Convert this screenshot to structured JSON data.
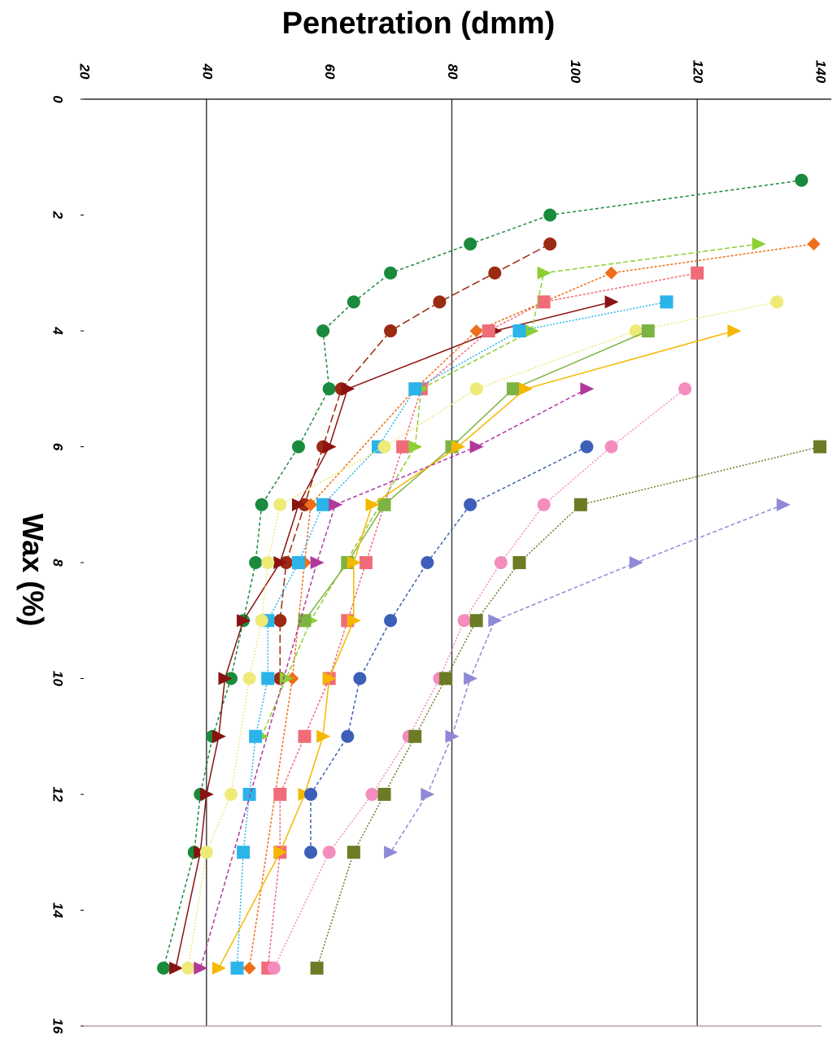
{
  "chart_data": {
    "type": "scatter",
    "title": "",
    "xlabel": "Penetration (dmm)",
    "ylabel": "Wax (%)",
    "xlim": [
      20,
      140
    ],
    "ylim": [
      0,
      16
    ],
    "x_ticks": [
      "20",
      "40",
      "60",
      "80",
      "100",
      "120",
      "140"
    ],
    "y_ticks": [
      "0",
      "2",
      "4",
      "6",
      "8",
      "10",
      "12",
      "14",
      "16"
    ],
    "grid": "vertical lines at 40, 80, 120",
    "y_axis_inverted": true,
    "series": [
      {
        "color": "#1a8a3c",
        "marker": "circle",
        "dash": "4,3",
        "points": [
          [
            137,
            1.4
          ],
          [
            96,
            2
          ],
          [
            83,
            2.5
          ],
          [
            70,
            3
          ],
          [
            64,
            3.5
          ],
          [
            59,
            4
          ],
          [
            60,
            5
          ],
          [
            55,
            6
          ],
          [
            49,
            7
          ],
          [
            48,
            8
          ],
          [
            46,
            9
          ],
          [
            44,
            10
          ],
          [
            41,
            11
          ],
          [
            39,
            12
          ],
          [
            38,
            13
          ],
          [
            33,
            15
          ]
        ]
      },
      {
        "color": "#9b2a12",
        "marker": "circle",
        "dash": "10,4",
        "points": [
          [
            96,
            2.5
          ],
          [
            87,
            3
          ],
          [
            78,
            3.5
          ],
          [
            70,
            4
          ],
          [
            62,
            5
          ],
          [
            59,
            6
          ],
          [
            56,
            7
          ],
          [
            53,
            8
          ],
          [
            52,
            9
          ],
          [
            52,
            10
          ]
        ]
      },
      {
        "color": "#8b1212",
        "marker": "triangle",
        "dash": "",
        "points": [
          [
            106,
            3.5
          ],
          [
            87,
            4
          ],
          [
            63,
            5
          ],
          [
            60,
            6
          ],
          [
            55,
            7
          ],
          [
            52,
            8
          ],
          [
            46,
            9
          ],
          [
            43,
            10
          ],
          [
            42,
            11
          ],
          [
            40,
            12
          ],
          [
            39,
            13
          ],
          [
            35,
            15
          ]
        ]
      },
      {
        "color": "#ef6f1a",
        "marker": "diamond",
        "dash": "3,2",
        "points": [
          [
            139,
            2.5
          ],
          [
            106,
            3
          ],
          [
            84,
            4
          ],
          [
            74,
            5
          ],
          [
            57,
            7
          ],
          [
            56,
            8
          ],
          [
            54,
            10
          ],
          [
            47,
            15
          ]
        ]
      },
      {
        "color": "#f06c78",
        "marker": "square",
        "dash": "3,2",
        "points": [
          [
            120,
            3
          ],
          [
            95,
            3.5
          ],
          [
            86,
            4
          ],
          [
            75,
            5
          ],
          [
            72,
            6
          ],
          [
            66,
            8
          ],
          [
            63,
            9
          ],
          [
            60,
            10
          ],
          [
            56,
            11
          ],
          [
            52,
            12
          ],
          [
            52,
            13
          ],
          [
            50,
            15
          ]
        ]
      },
      {
        "color": "#8ccf32",
        "marker": "triangle",
        "dash": "6,3",
        "points": [
          [
            130,
            2.5
          ],
          [
            95,
            3
          ],
          [
            93,
            4
          ],
          [
            75,
            5
          ],
          [
            74,
            6
          ],
          [
            57,
            9
          ],
          [
            53,
            10
          ],
          [
            49,
            11
          ]
        ]
      },
      {
        "color": "#2ab4ea",
        "marker": "square",
        "dash": "2,2",
        "points": [
          [
            115,
            3.5
          ],
          [
            91,
            4
          ],
          [
            74,
            5
          ],
          [
            68,
            6
          ],
          [
            59,
            7
          ],
          [
            55,
            8
          ],
          [
            50,
            9
          ],
          [
            50,
            10
          ],
          [
            48,
            11
          ],
          [
            47,
            12
          ],
          [
            46,
            13
          ],
          [
            45,
            15
          ]
        ]
      },
      {
        "color": "#eeea78",
        "marker": "circle",
        "dash": "2,2",
        "points": [
          [
            133,
            3.5
          ],
          [
            110,
            4
          ],
          [
            84,
            5
          ],
          [
            69,
            6
          ],
          [
            52,
            7
          ],
          [
            50,
            8
          ],
          [
            49,
            9
          ],
          [
            47,
            10
          ],
          [
            44,
            12
          ],
          [
            40,
            13
          ],
          [
            37,
            15
          ]
        ]
      },
      {
        "color": "#7cb342",
        "marker": "square",
        "dash": "",
        "points": [
          [
            112,
            4
          ],
          [
            90,
            5
          ],
          [
            80,
            6
          ],
          [
            69,
            7
          ],
          [
            63,
            8
          ],
          [
            56,
            9
          ]
        ]
      },
      {
        "color": "#f5b800",
        "marker": "triangle",
        "dash": "",
        "points": [
          [
            126,
            4
          ],
          [
            92,
            5
          ],
          [
            81,
            6
          ],
          [
            67,
            7
          ],
          [
            64,
            8
          ],
          [
            64,
            9
          ],
          [
            60,
            10
          ],
          [
            59,
            11
          ],
          [
            56,
            12
          ],
          [
            52,
            13
          ],
          [
            42,
            15
          ]
        ]
      },
      {
        "color": "#b2389b",
        "marker": "triangle",
        "dash": "5,3",
        "points": [
          [
            102,
            5
          ],
          [
            84,
            6
          ],
          [
            61,
            7
          ],
          [
            58,
            8
          ],
          [
            39,
            15
          ]
        ]
      },
      {
        "color": "#f48dbd",
        "marker": "circle",
        "dash": "2,2",
        "points": [
          [
            118,
            5
          ],
          [
            106,
            6
          ],
          [
            95,
            7
          ],
          [
            88,
            8
          ],
          [
            82,
            9
          ],
          [
            78,
            10
          ],
          [
            73,
            11
          ],
          [
            67,
            12
          ],
          [
            60,
            13
          ],
          [
            51,
            15
          ]
        ]
      },
      {
        "color": "#3d5fb9",
        "marker": "circle",
        "dash": "4,3",
        "points": [
          [
            102,
            6
          ],
          [
            83,
            7
          ],
          [
            76,
            8
          ],
          [
            70,
            9
          ],
          [
            65,
            10
          ],
          [
            63,
            11
          ],
          [
            57,
            12
          ],
          [
            57,
            13
          ]
        ]
      },
      {
        "color": "#6b7c25",
        "marker": "square",
        "dash": "2,2",
        "points": [
          [
            140,
            6
          ],
          [
            101,
            7
          ],
          [
            91,
            8
          ],
          [
            84,
            9
          ],
          [
            79,
            10
          ],
          [
            74,
            11
          ],
          [
            69,
            12
          ],
          [
            64,
            13
          ],
          [
            58,
            15
          ]
        ]
      },
      {
        "color": "#8f8ad6",
        "marker": "triangle",
        "dash": "5,3",
        "points": [
          [
            134,
            7
          ],
          [
            110,
            8
          ],
          [
            87,
            9
          ],
          [
            83,
            10
          ],
          [
            80,
            11
          ],
          [
            76,
            12
          ],
          [
            70,
            13
          ]
        ]
      }
    ]
  }
}
